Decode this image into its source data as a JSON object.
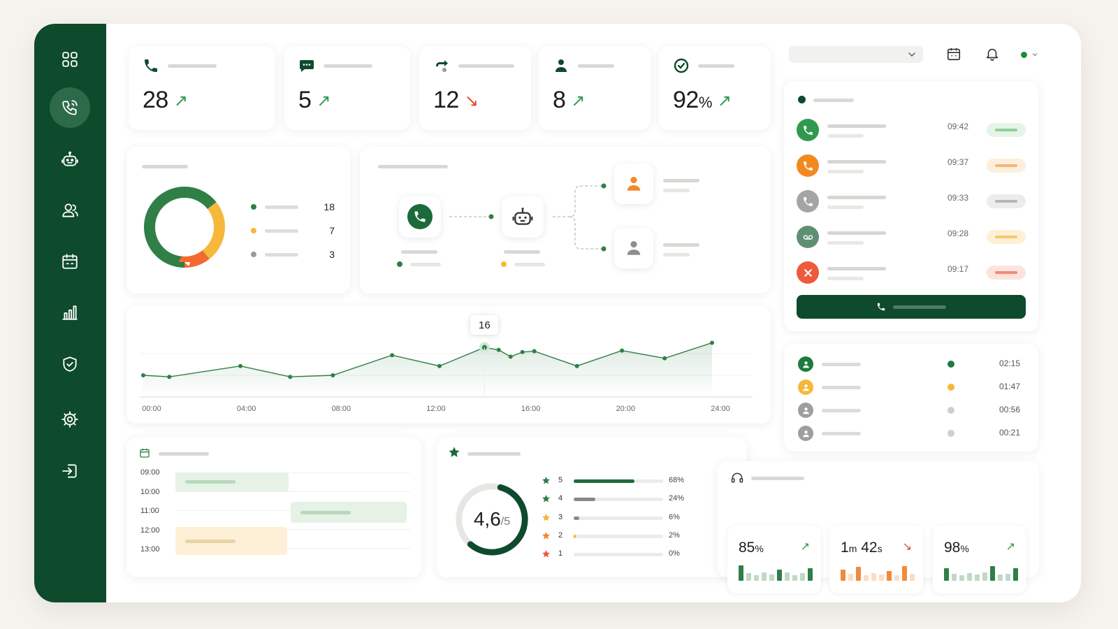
{
  "stats": [
    {
      "value": "28",
      "unit": "",
      "trend": "up"
    },
    {
      "value": "5",
      "unit": "",
      "trend": "up"
    },
    {
      "value": "12",
      "unit": "",
      "trend": "down"
    },
    {
      "value": "8",
      "unit": "",
      "trend": "up"
    },
    {
      "value": "92",
      "unit": "%",
      "trend": "up"
    }
  ],
  "arrows": {
    "up": "↗",
    "down": "↘"
  },
  "donut": {
    "segments": [
      {
        "value": 18,
        "color": "#2f7f46"
      },
      {
        "value": 7,
        "color": "#f6b83a"
      },
      {
        "value": 3,
        "color": "#f26a2e"
      }
    ],
    "legend": [
      {
        "value": "18",
        "color": "#2f7f46"
      },
      {
        "value": "7",
        "color": "#f6b83a"
      },
      {
        "value": "3",
        "color": "#9a9a9a"
      }
    ]
  },
  "chart_data": {
    "type": "line",
    "x_ticks": [
      "00:00",
      "04:00",
      "08:00",
      "12:00",
      "16:00",
      "20:00",
      "24:00"
    ],
    "x": [
      0,
      1.1,
      4.1,
      6.2,
      8.0,
      10.5,
      12.5,
      14.4,
      15.0,
      15.5,
      16.0,
      16.5,
      18.3,
      20.2,
      22.0,
      24.0
    ],
    "values": [
      7,
      6.5,
      10,
      6.5,
      7,
      13.5,
      10,
      16,
      15.2,
      13,
      14.5,
      14.8,
      10,
      15,
      12.5,
      17.5
    ],
    "tooltip": "16",
    "xlim": [
      0,
      24
    ],
    "ylim": [
      0,
      28
    ],
    "color": "#2f7f46"
  },
  "calls": [
    {
      "time": "09:42",
      "color": "#2f9a4e",
      "pill": "#e4f4e6",
      "bar": "#93cf9d",
      "icon": "phone"
    },
    {
      "time": "09:37",
      "color": "#f2891f",
      "pill": "#fdeedd",
      "bar": "#f5b57a",
      "icon": "phone"
    },
    {
      "time": "09:33",
      "color": "#a4a4a4",
      "pill": "#ececec",
      "bar": "#b5b5b5",
      "icon": "phone"
    },
    {
      "time": "09:28",
      "color": "#5f8f73",
      "pill": "#fdf0d5",
      "bar": "#f5c870",
      "icon": "voicemail"
    },
    {
      "time": "09:17",
      "color": "#ee5a3c",
      "pill": "#fde3dd",
      "bar": "#f08b74",
      "icon": "missed"
    }
  ],
  "agents": [
    {
      "time": "02:15",
      "color": "#1f7a3e",
      "status": "#1f7a3e"
    },
    {
      "time": "01:47",
      "color": "#f6b83a",
      "status": "#f6b83a"
    },
    {
      "time": "00:56",
      "color": "#9e9e9e",
      "status": "#cfcfcf"
    },
    {
      "time": "00:21",
      "color": "#9e9e9e",
      "status": "#cfcfcf"
    }
  ],
  "schedule": {
    "hours": [
      "09:00",
      "10:00",
      "11:00",
      "12:00",
      "13:00"
    ]
  },
  "rating": {
    "score": "4,6",
    "max": "/5",
    "fraction": 0.92,
    "rows": [
      {
        "star": "5",
        "pct": "68%",
        "fraction": 0.68,
        "color": "#1d6b3a",
        "star_color": "#2e7d4a"
      },
      {
        "star": "4",
        "pct": "24%",
        "fraction": 0.24,
        "color": "#888888",
        "star_color": "#2e7d4a"
      },
      {
        "star": "3",
        "pct": "6%",
        "fraction": 0.06,
        "color": "#888888",
        "star_color": "#f5b530"
      },
      {
        "star": "2",
        "pct": "2%",
        "fraction": 0.02,
        "color": "#f5b530",
        "star_color": "#f08a2e"
      },
      {
        "star": "1",
        "pct": "0%",
        "fraction": 0.0,
        "color": "#cccccc",
        "star_color": "#ee5a3c"
      }
    ]
  },
  "kpis": [
    {
      "v1": "85",
      "u1": "%",
      "v2": "",
      "u2": "",
      "trend": "up",
      "color": "#2f7f46"
    },
    {
      "v1": "1",
      "u1": "m",
      "v2": " 42",
      "u2": "s",
      "trend": "down",
      "color": "#f28a3a"
    },
    {
      "v1": "98",
      "u1": "%",
      "v2": "",
      "u2": "",
      "trend": "up",
      "color": "#2f7f46"
    }
  ],
  "colors": {
    "brand": "#0e4a2c",
    "accent": "#2f7f46"
  }
}
